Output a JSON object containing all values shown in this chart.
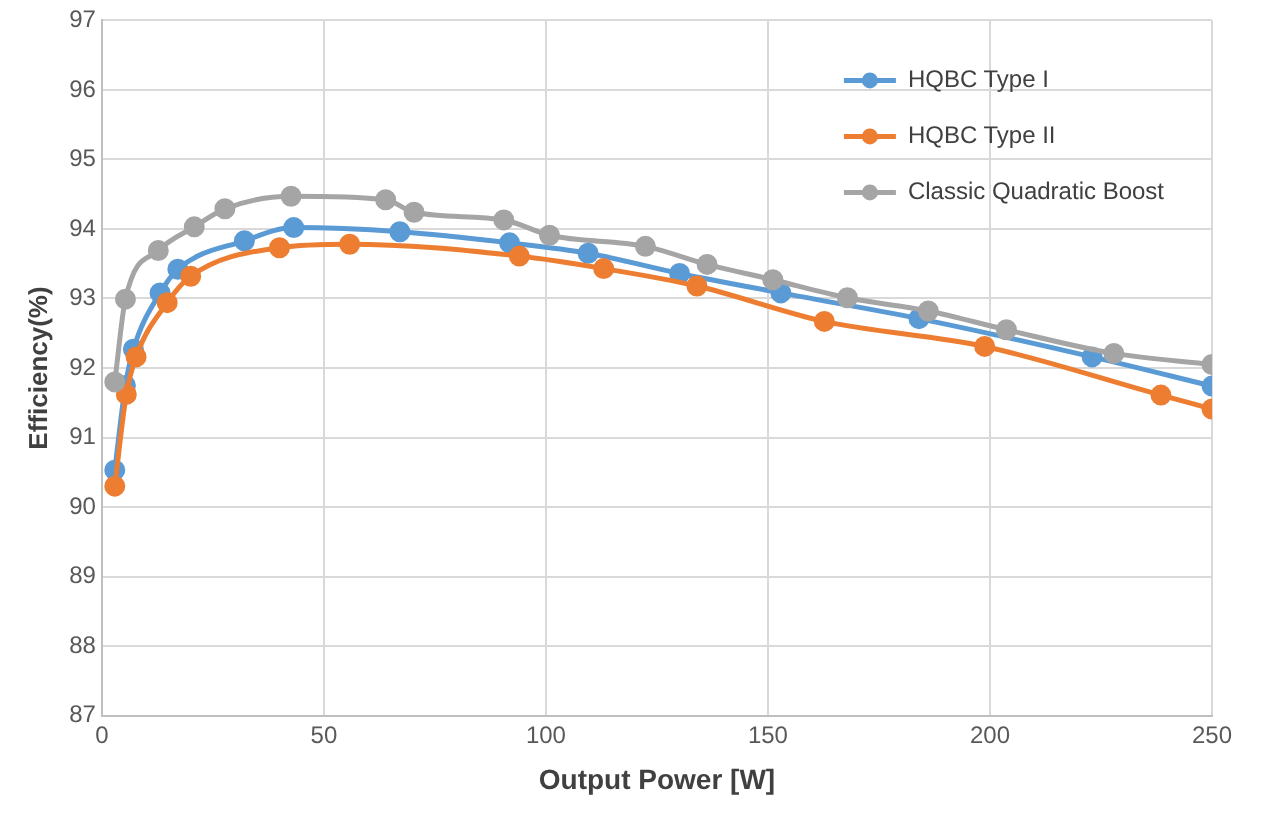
{
  "chart_data": {
    "type": "line",
    "xlabel": "Output Power [W]",
    "ylabel": "Efficiency(%)",
    "xlim": [
      0,
      250
    ],
    "xticks": [
      0,
      50,
      100,
      150,
      200,
      250
    ],
    "ylim": [
      87,
      97
    ],
    "yticks": [
      87,
      88,
      89,
      90,
      91,
      92,
      93,
      94,
      95,
      96,
      97
    ],
    "grid": true,
    "legend": "top right",
    "marker": "circle",
    "line_style": "solid",
    "series": [
      {
        "name": "HQBC Type I",
        "color": "#5b9bd5",
        "x": [
          2.9,
          5.3,
          7.1,
          13.1,
          17.1,
          32.1,
          43.2,
          67.1,
          91.8,
          109.5,
          130.1,
          152.9,
          184,
          223,
          250
        ],
        "values": [
          90.53,
          91.75,
          92.27,
          93.08,
          93.42,
          93.83,
          94.02,
          93.96,
          93.8,
          93.65,
          93.36,
          93.08,
          92.71,
          92.16,
          91.74
        ]
      },
      {
        "name": "HQBC Type II",
        "color": "#ed7d31",
        "x": [
          2.9,
          5.5,
          7.7,
          14.7,
          20,
          40,
          55.8,
          94,
          113,
          134,
          162.7,
          198.8,
          238.5,
          250
        ],
        "values": [
          90.3,
          91.62,
          92.16,
          92.94,
          93.32,
          93.73,
          93.78,
          93.61,
          93.43,
          93.18,
          92.67,
          92.31,
          91.61,
          91.41
        ]
      },
      {
        "name": "Classic Quadratic Boost",
        "color": "#a5a5a5",
        "x": [
          2.9,
          5.3,
          12.7,
          20.8,
          27.7,
          42.6,
          63.9,
          70.3,
          90.5,
          100.8,
          122.4,
          136.3,
          151.1,
          167.9,
          186.1,
          203.7,
          227.9,
          250
        ],
        "values": [
          91.8,
          92.99,
          93.69,
          94.03,
          94.29,
          94.47,
          94.42,
          94.24,
          94.13,
          93.91,
          93.75,
          93.49,
          93.27,
          93.01,
          92.82,
          92.55,
          92.21,
          92.05
        ]
      }
    ]
  }
}
